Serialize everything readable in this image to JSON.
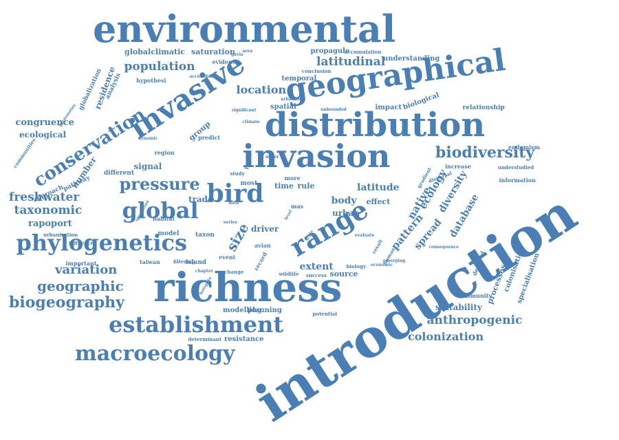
{
  "color": "#4a7fb5",
  "words": [
    {
      "text": "environmental",
      "size": 54
    },
    {
      "text": "introduction",
      "size": 76
    },
    {
      "text": "richness",
      "size": 58
    },
    {
      "text": "distribution",
      "size": 48
    },
    {
      "text": "invasion",
      "size": 46
    },
    {
      "text": "geographical",
      "size": 44
    },
    {
      "text": "invasive",
      "size": 42
    },
    {
      "text": "range",
      "size": 38
    },
    {
      "text": "bird",
      "size": 36
    },
    {
      "text": "phylogenetics",
      "size": 32
    },
    {
      "text": "establishment",
      "size": 32
    },
    {
      "text": "macroecology",
      "size": 30
    },
    {
      "text": "global",
      "size": 32
    },
    {
      "text": "conservation",
      "size": 26
    },
    {
      "text": "pressure",
      "size": 24
    },
    {
      "text": "biogeography",
      "size": 22
    },
    {
      "text": "biodiversity",
      "size": 22
    },
    {
      "text": "geographic",
      "size": 20
    },
    {
      "text": "variation",
      "size": 18
    },
    {
      "text": "freshwater",
      "size": 17
    },
    {
      "text": "taxonomic",
      "size": 17
    },
    {
      "text": "population",
      "size": 17
    },
    {
      "text": "latitudinal",
      "size": 17
    },
    {
      "text": "anthropogenic",
      "size": 17
    },
    {
      "text": "colonization",
      "size": 16
    },
    {
      "text": "location",
      "size": 16
    },
    {
      "text": "native",
      "size": 15
    },
    {
      "text": "ecology",
      "size": 15
    },
    {
      "text": "pattern",
      "size": 15
    },
    {
      "text": "diversity",
      "size": 14
    },
    {
      "text": "spread",
      "size": 14
    },
    {
      "text": "database",
      "size": 14
    },
    {
      "text": "latitude",
      "size": 14
    },
    {
      "text": "body",
      "size": 14
    },
    {
      "text": "extent",
      "size": 14
    },
    {
      "text": "size",
      "size": 20
    },
    {
      "text": "congruence",
      "size": 13
    },
    {
      "text": "rapoport",
      "size": 13
    },
    {
      "text": "ecological",
      "size": 12
    },
    {
      "text": "signal",
      "size": 12
    },
    {
      "text": "trade",
      "size": 12
    },
    {
      "text": "number",
      "size": 12
    },
    {
      "text": "residence",
      "size": 12
    },
    {
      "text": "suitability",
      "size": 12
    },
    {
      "text": "processes",
      "size": 11
    },
    {
      "text": "colonisation",
      "size": 10
    },
    {
      "text": "specialisation",
      "size": 10
    },
    {
      "text": "modelling",
      "size": 10
    },
    {
      "text": "planning",
      "size": 10
    },
    {
      "text": "resistance",
      "size": 10
    },
    {
      "text": "driver",
      "size": 12
    },
    {
      "text": "urban",
      "size": 12
    },
    {
      "text": "effect",
      "size": 11
    },
    {
      "text": "source",
      "size": 11
    },
    {
      "text": "time",
      "size": 11
    },
    {
      "text": "rule",
      "size": 11
    },
    {
      "text": "group",
      "size": 11
    },
    {
      "text": "globalclimatic",
      "size": 11
    },
    {
      "text": "saturation",
      "size": 11
    },
    {
      "text": "propagule",
      "size": 10
    },
    {
      "text": "understanding",
      "size": 10
    },
    {
      "text": "temporal",
      "size": 10
    },
    {
      "text": "spatial",
      "size": 10
    },
    {
      "text": "impact",
      "size": 10
    },
    {
      "text": "biological",
      "size": 10
    },
    {
      "text": "relationship",
      "size": 9
    },
    {
      "text": "endemism",
      "size": 8
    },
    {
      "text": "increase",
      "size": 8
    },
    {
      "text": "information",
      "size": 8
    },
    {
      "text": "understudied",
      "size": 7
    },
    {
      "text": "different",
      "size": 9
    },
    {
      "text": "region",
      "size": 8
    },
    {
      "text": "model",
      "size": 9
    },
    {
      "text": "habitat",
      "size": 8
    },
    {
      "text": "taxon",
      "size": 9
    },
    {
      "text": "event",
      "size": 8
    },
    {
      "text": "island",
      "size": 9
    },
    {
      "text": "taiwan",
      "size": 8
    },
    {
      "text": "important",
      "size": 8
    },
    {
      "text": "influence",
      "size": 7
    },
    {
      "text": "urbanization",
      "size": 7
    },
    {
      "text": "hypothesi",
      "size": 8
    },
    {
      "text": "evidence",
      "size": 8
    },
    {
      "text": "accumulation",
      "size": 7
    },
    {
      "text": "conclusion",
      "size": 7
    },
    {
      "text": "predict",
      "size": 8
    },
    {
      "text": "potential",
      "size": 7
    },
    {
      "text": "success",
      "size": 7
    },
    {
      "text": "wildlife",
      "size": 7
    },
    {
      "text": "change",
      "size": 7
    },
    {
      "text": "biology",
      "size": 7
    },
    {
      "text": "economic",
      "size": 6
    },
    {
      "text": "emerging",
      "size": 6
    },
    {
      "text": "filtering",
      "size": 7
    },
    {
      "text": "chapter",
      "size": 6
    },
    {
      "text": "hotspots",
      "size": 6
    },
    {
      "text": "determinant",
      "size": 7
    },
    {
      "text": "community",
      "size": 8
    },
    {
      "text": "decapod",
      "size": 8
    },
    {
      "text": "consequence",
      "size": 6
    },
    {
      "text": "dispersal",
      "size": 7
    },
    {
      "text": "gradient",
      "size": 7
    },
    {
      "text": "analysis",
      "size": 9
    },
    {
      "text": "globalization",
      "size": 9
    },
    {
      "text": "pycnonotus",
      "size": 6
    },
    {
      "text": "communities",
      "size": 7
    },
    {
      "text": "approach",
      "size": 9
    },
    {
      "text": "pathway",
      "size": 9
    },
    {
      "text": "factor",
      "size": 8
    },
    {
      "text": "study",
      "size": 7
    },
    {
      "text": "most",
      "size": 9
    },
    {
      "text": "more",
      "size": 8
    },
    {
      "text": "mas",
      "size": 8
    },
    {
      "text": "avian",
      "size": 8
    },
    {
      "text": "result",
      "size": 7
    },
    {
      "text": "human",
      "size": 7
    },
    {
      "text": "record",
      "size": 8
    },
    {
      "text": "series",
      "size": 6
    },
    {
      "text": "area",
      "size": 6
    },
    {
      "text": "gavia",
      "size": 6
    },
    {
      "text": "accessibility",
      "size": 6
    },
    {
      "text": "unbounded",
      "size": 6
    },
    {
      "text": "urbanized",
      "size": 6
    },
    {
      "text": "dynamic",
      "size": 6
    },
    {
      "text": "speciation",
      "size": 6
    },
    {
      "text": "data",
      "size": 6
    },
    {
      "text": "level",
      "size": 6
    },
    {
      "text": "scale",
      "size": 6
    },
    {
      "text": "evaluate",
      "size": 6
    },
    {
      "text": "major",
      "size": 6
    },
    {
      "text": "significant",
      "size": 6
    },
    {
      "text": "climate",
      "size": 6
    }
  ]
}
